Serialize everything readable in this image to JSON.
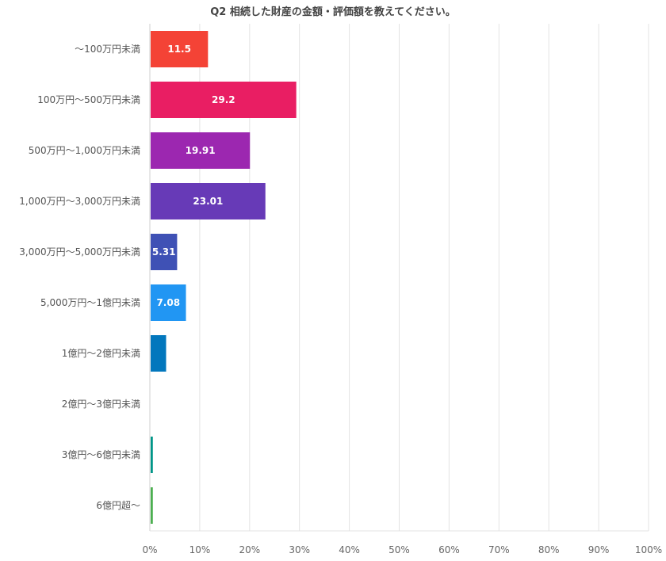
{
  "chart_data": {
    "type": "bar",
    "orientation": "horizontal",
    "title": "Q2 相続した財産の金額・評価額を教えてください。",
    "xlabel": "",
    "ylabel": "",
    "xlim": [
      0,
      100
    ],
    "grid": true,
    "legend": "none",
    "categories": [
      "～100万円未満",
      "100万円～500万円未満",
      "500万円～1,000万円未満",
      "1,000万円～3,000万円未満",
      "3,000万円～5,000万円未満",
      "5,000万円～1億円未満",
      "1億円～2億円未満",
      "2億円～3億円未満",
      "3億円～6億円未満",
      "6億円超～"
    ],
    "values": [
      11.5,
      29.2,
      19.91,
      23.01,
      5.31,
      7.08,
      3.1,
      0,
      0.44,
      0.44
    ],
    "data_labels": [
      "11.5",
      "29.2",
      "19.91",
      "23.01",
      "5.31",
      "7.08",
      "",
      "",
      "",
      ""
    ],
    "colors": [
      "#f44336",
      "#e91e63",
      "#9c27b0",
      "#673ab7",
      "#3f51b5",
      "#2196f3",
      "#0277bd",
      "#00acc1",
      "#009688",
      "#4caf50"
    ],
    "x_ticks": [
      "0%",
      "10%",
      "20%",
      "30%",
      "40%",
      "50%",
      "60%",
      "70%",
      "80%",
      "90%",
      "100%"
    ],
    "x_tick_values": [
      0,
      10,
      20,
      30,
      40,
      50,
      60,
      70,
      80,
      90,
      100
    ]
  }
}
